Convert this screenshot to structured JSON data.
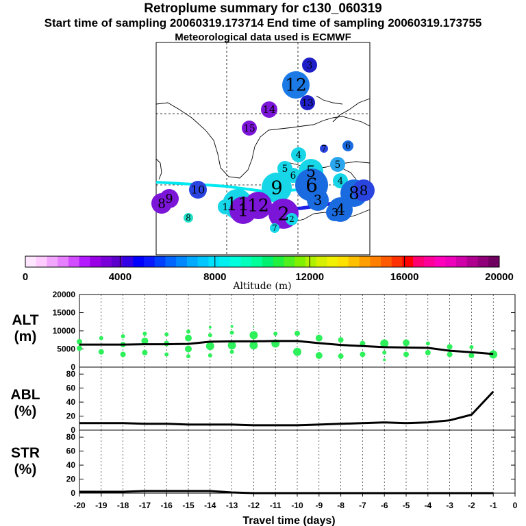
{
  "header": {
    "title": "Retroplume summary for c130_060319",
    "sampling_line": "Start time of sampling 20060319.173714     End time of sampling 20060319.173755",
    "met_line": "Meteorological data used is ECMWF"
  },
  "colorbar": {
    "label": "Altitude (m)",
    "ticks": [
      "0",
      "4000",
      "8000",
      "12000",
      "16000",
      "20000"
    ],
    "colors": [
      "#ffe6ff",
      "#ffccff",
      "#f2a6ff",
      "#e680ff",
      "#d24dff",
      "#b31aff",
      "#9900e6",
      "#7a00d9",
      "#5c00cc",
      "#3300e6",
      "#0000ff",
      "#0a1aff",
      "#0040ff",
      "#0066ff",
      "#0088ff",
      "#00aaff",
      "#00c6ff",
      "#00e0ff",
      "#00f0f0",
      "#00ffdd",
      "#00ffbb",
      "#00ff99",
      "#00f070",
      "#20f040",
      "#50f020",
      "#80f000",
      "#b0f000",
      "#d6f000",
      "#f0f000",
      "#ffe000",
      "#ffc000",
      "#ffa000",
      "#ff8000",
      "#ff5a00",
      "#ff3000",
      "#ff0000",
      "#ff0070",
      "#ff0099",
      "#ff00bb",
      "#ee00bb",
      "#d000a8",
      "#b00090",
      "#900078",
      "#700060"
    ]
  },
  "map": {
    "labels": [
      {
        "text": "3",
        "color": "#1e1ec8",
        "size": 22
      },
      {
        "text": "12",
        "color": "#1c7ae6",
        "size": 40
      },
      {
        "text": "13",
        "color": "#1e1ec8",
        "size": 22
      },
      {
        "text": "14",
        "color": "#7b15d8",
        "size": 24
      },
      {
        "text": "15",
        "color": "#7b15d8",
        "size": 22
      },
      {
        "text": "4",
        "color": "#16d6e8",
        "size": 22
      },
      {
        "text": "7",
        "color": "#2a44e0",
        "size": 12
      },
      {
        "text": "6",
        "color": "#1a6be0",
        "size": 16
      },
      {
        "text": "5",
        "color": "#2aa6ee",
        "size": 22
      },
      {
        "text": "5",
        "color": "#16d6e8",
        "size": 36
      },
      {
        "text": "6",
        "color": "#16d6e8",
        "size": 22
      },
      {
        "text": "5",
        "color": "#16d6e8",
        "size": 22
      },
      {
        "text": "4",
        "color": "#16d6e8",
        "size": 22
      },
      {
        "text": "8",
        "color": "#1a6be0",
        "size": 40
      },
      {
        "text": "8",
        "color": "#2a44e0",
        "size": 32
      },
      {
        "text": "10",
        "color": "#2a44e0",
        "size": 26
      },
      {
        "text": "9",
        "color": "#16d6e8",
        "size": 44
      },
      {
        "text": "6",
        "color": "#1a6be0",
        "size": 48
      },
      {
        "text": "11",
        "color": "#16d6e8",
        "size": 44
      },
      {
        "text": "12",
        "color": "#7b15d8",
        "size": 40
      },
      {
        "text": "1",
        "color": "#16d6e8",
        "size": 22
      },
      {
        "text": "1",
        "color": "#7b15d8",
        "size": 40
      },
      {
        "text": "2",
        "color": "#7b15d8",
        "size": 44
      },
      {
        "text": "2",
        "color": "#16d6e8",
        "size": 18
      },
      {
        "text": "3",
        "color": "#1a6be0",
        "size": 32
      },
      {
        "text": "4",
        "color": "#1a6be0",
        "size": 36
      },
      {
        "text": "3",
        "color": "#1a6be0",
        "size": 26
      },
      {
        "text": "7",
        "color": "#16d6e8",
        "size": 14
      },
      {
        "text": "8",
        "color": "#7b15d8",
        "size": 30
      },
      {
        "text": "9",
        "color": "#7b15d8",
        "size": 28
      },
      {
        "text": "8",
        "color": "#20e0c8",
        "size": 14
      }
    ]
  },
  "panels": [
    {
      "name": "alt",
      "label": "ALT\n(m)"
    },
    {
      "name": "abl",
      "label": "ABL\n(%)"
    },
    {
      "name": "str",
      "label": "STR\n(%)"
    }
  ],
  "chart_data": [
    {
      "type": "scatter",
      "title": "ALT (m)",
      "ylabel": "ALT (m)",
      "ylim": [
        0,
        20000
      ],
      "yticks": [
        0,
        5000,
        10000,
        15000,
        20000
      ],
      "xlim": [
        -20,
        0
      ],
      "line": {
        "x": [
          -20,
          -19,
          -18,
          -17,
          -16,
          -15,
          -14,
          -13,
          -12,
          -11,
          -10,
          -9,
          -8,
          -7,
          -6,
          -5,
          -4,
          -3,
          -2,
          -1
        ],
        "y": [
          6200,
          6200,
          6200,
          6300,
          6300,
          6400,
          7000,
          7100,
          7100,
          7200,
          7200,
          6600,
          6100,
          5800,
          5500,
          5400,
          5300,
          4500,
          4100,
          3600
        ]
      },
      "dots": [
        {
          "x": -20,
          "y": 7000,
          "r": 4
        },
        {
          "x": -20,
          "y": 5200,
          "r": 4
        },
        {
          "x": -19,
          "y": 8000,
          "r": 3
        },
        {
          "x": -19,
          "y": 4200,
          "r": 4
        },
        {
          "x": -18,
          "y": 8500,
          "r": 3
        },
        {
          "x": -18,
          "y": 6200,
          "r": 4
        },
        {
          "x": -18,
          "y": 3500,
          "r": 4
        },
        {
          "x": -17,
          "y": 9200,
          "r": 3
        },
        {
          "x": -17,
          "y": 7200,
          "r": 5
        },
        {
          "x": -17,
          "y": 4000,
          "r": 4
        },
        {
          "x": -16,
          "y": 9000,
          "r": 3
        },
        {
          "x": -16,
          "y": 6500,
          "r": 4
        },
        {
          "x": -16,
          "y": 3500,
          "r": 3
        },
        {
          "x": -15,
          "y": 9800,
          "r": 3
        },
        {
          "x": -15,
          "y": 8000,
          "r": 5
        },
        {
          "x": -15,
          "y": 5000,
          "r": 5
        },
        {
          "x": -15,
          "y": 3000,
          "r": 3
        },
        {
          "x": -14,
          "y": 11000,
          "r": 2
        },
        {
          "x": -14,
          "y": 8800,
          "r": 3
        },
        {
          "x": -14,
          "y": 5800,
          "r": 6
        },
        {
          "x": -14,
          "y": 3200,
          "r": 3
        },
        {
          "x": -13,
          "y": 11200,
          "r": 2
        },
        {
          "x": -13,
          "y": 9500,
          "r": 3
        },
        {
          "x": -13,
          "y": 6000,
          "r": 6
        },
        {
          "x": -13,
          "y": 4200,
          "r": 3
        },
        {
          "x": -12,
          "y": 11000,
          "r": 1
        },
        {
          "x": -12,
          "y": 8800,
          "r": 6
        },
        {
          "x": -12,
          "y": 6000,
          "r": 6
        },
        {
          "x": -11,
          "y": 9200,
          "r": 3
        },
        {
          "x": -11,
          "y": 6500,
          "r": 6
        },
        {
          "x": -10,
          "y": 9300,
          "r": 4
        },
        {
          "x": -10,
          "y": 4200,
          "r": 6
        },
        {
          "x": -9,
          "y": 8000,
          "r": 5
        },
        {
          "x": -9,
          "y": 3200,
          "r": 5
        },
        {
          "x": -8,
          "y": 7500,
          "r": 4
        },
        {
          "x": -8,
          "y": 3000,
          "r": 4
        },
        {
          "x": -7,
          "y": 6500,
          "r": 4
        },
        {
          "x": -7,
          "y": 3500,
          "r": 4
        },
        {
          "x": -6,
          "y": 6500,
          "r": 6
        },
        {
          "x": -6,
          "y": 4000,
          "r": 3
        },
        {
          "x": -6,
          "y": 2000,
          "r": 2
        },
        {
          "x": -5,
          "y": 6700,
          "r": 5
        },
        {
          "x": -5,
          "y": 3500,
          "r": 4
        },
        {
          "x": -4,
          "y": 6500,
          "r": 3
        },
        {
          "x": -4,
          "y": 4000,
          "r": 4
        },
        {
          "x": -3,
          "y": 5600,
          "r": 4
        },
        {
          "x": -3,
          "y": 3500,
          "r": 4
        },
        {
          "x": -2,
          "y": 5500,
          "r": 3
        },
        {
          "x": -2,
          "y": 3200,
          "r": 4
        },
        {
          "x": -1,
          "y": 3500,
          "r": 6
        }
      ]
    },
    {
      "type": "line",
      "title": "ABL (%)",
      "ylabel": "ABL (%)",
      "ylim": [
        0,
        90
      ],
      "yticks": [
        0,
        20,
        40,
        60,
        80
      ],
      "xlim": [
        -20,
        0
      ],
      "x": [
        -20,
        -19,
        -18,
        -17,
        -16,
        -15,
        -14,
        -13,
        -12,
        -11,
        -10,
        -9,
        -8,
        -7,
        -6,
        -5,
        -4,
        -3,
        -2,
        -1
      ],
      "y": [
        10,
        10,
        10,
        9,
        9,
        8,
        8,
        8,
        7,
        7,
        7,
        8,
        9,
        10,
        11,
        10,
        11,
        14,
        22,
        55
      ]
    },
    {
      "type": "line",
      "title": "STR (%)",
      "ylabel": "STR (%)",
      "ylim": [
        0,
        90
      ],
      "yticks": [
        0,
        20,
        40,
        60,
        80
      ],
      "xlim": [
        -20,
        0
      ],
      "xticks": [
        "-20",
        "-19",
        "-18",
        "-17",
        "-16",
        "-15",
        "-14",
        "-13",
        "-12",
        "-11",
        "-10",
        "-9",
        "-8",
        "-7",
        "-6",
        "-5",
        "-4",
        "-3",
        "-2",
        "-1",
        "0"
      ],
      "xlabel": "Travel time (days)",
      "x": [
        -20,
        -19,
        -18,
        -17,
        -16,
        -15,
        -14,
        -13,
        -12,
        -11,
        -10,
        -9,
        -8,
        -7,
        -6,
        -5,
        -4,
        -3,
        -2,
        -1
      ],
      "y": [
        2,
        2,
        2,
        3,
        3,
        3,
        3,
        1,
        0,
        0,
        0,
        0,
        0,
        0,
        0,
        0,
        0,
        0,
        0,
        0
      ]
    }
  ]
}
